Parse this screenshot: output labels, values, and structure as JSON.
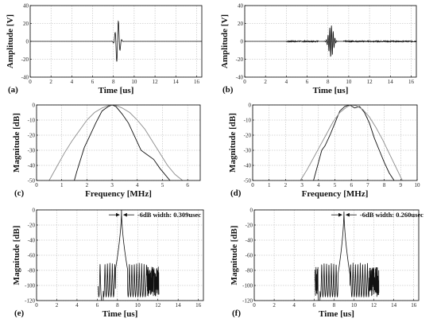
{
  "colors": {
    "trace": "#111111",
    "model": "#8c8c8c",
    "grid": "#b0b0b0",
    "frame": "#000000"
  },
  "chart_data": [
    {
      "panel": "(a)",
      "type": "line",
      "kind": "pulse",
      "xlabel": "Time [us]",
      "ylabel": "Amplitude [V]",
      "xlim": [
        0,
        16.5
      ],
      "ylim": [
        -40,
        40
      ],
      "xticks": [
        0,
        2,
        4,
        6,
        8,
        10,
        12,
        14,
        16
      ],
      "yticks": [
        -40,
        -20,
        0,
        20,
        40
      ],
      "grid": true,
      "pulse": {
        "center": 8.4,
        "peak": 25,
        "width": 0.25,
        "freq": 3.0
      }
    },
    {
      "panel": "(b)",
      "type": "line",
      "kind": "pulse",
      "xlabel": "Time [us]",
      "ylabel": "Amplitude [V]",
      "xlim": [
        0,
        16.5
      ],
      "ylim": [
        -40,
        40
      ],
      "xticks": [
        0,
        2,
        4,
        6,
        8,
        10,
        12,
        14,
        16
      ],
      "yticks": [
        -40,
        -20,
        0,
        20,
        40
      ],
      "grid": true,
      "pulse": {
        "center": 8.3,
        "peak": 18,
        "width": 0.3,
        "freq": 6.0
      }
    },
    {
      "panel": "(c)",
      "type": "line",
      "kind": "spectrum",
      "xlabel": "Frequency [MHz]",
      "ylabel": "Magnitude [dB]",
      "xlim": [
        0,
        6.5
      ],
      "ylim": [
        -50,
        0
      ],
      "xticks": [
        0,
        1,
        2,
        3,
        4,
        5,
        6
      ],
      "yticks": [
        -50,
        -40,
        -30,
        -20,
        -10,
        0
      ],
      "grid": true,
      "series": [
        {
          "role": "measured",
          "x": [
            1.5,
            1.6,
            1.75,
            1.9,
            2.1,
            2.35,
            2.6,
            2.85,
            3.0,
            3.15,
            3.4,
            3.65,
            3.9,
            4.15,
            4.4,
            4.65,
            4.9,
            5.1,
            5.3
          ],
          "y": [
            -50,
            -44,
            -36,
            -28,
            -21,
            -12,
            -4,
            -1,
            0,
            -1,
            -6,
            -12,
            -21,
            -30,
            -33,
            -36,
            -42,
            -46,
            -50
          ]
        },
        {
          "role": "model",
          "x": [
            0.5,
            0.8,
            1.1,
            1.4,
            1.7,
            2.0,
            2.3,
            2.6,
            2.9,
            3.1,
            3.4,
            3.7,
            4.0,
            4.3,
            4.6,
            4.9,
            5.2,
            5.5,
            5.8
          ],
          "y": [
            -50,
            -41,
            -32,
            -24,
            -17,
            -10,
            -5,
            -2,
            -0.2,
            0,
            -2,
            -5,
            -10,
            -16,
            -24,
            -32,
            -40,
            -46,
            -50
          ]
        }
      ]
    },
    {
      "panel": "(d)",
      "type": "line",
      "kind": "spectrum",
      "xlabel": "Frequency [MHz]",
      "ylabel": "Magnitude [dB]",
      "xlim": [
        0,
        10
      ],
      "ylim": [
        -50,
        0
      ],
      "xticks": [
        0,
        1,
        2,
        3,
        4,
        5,
        6,
        7,
        8,
        9,
        10
      ],
      "yticks": [
        -50,
        -40,
        -30,
        -20,
        -10,
        0
      ],
      "grid": true,
      "series": [
        {
          "role": "measured",
          "x": [
            3.7,
            3.85,
            4.0,
            4.2,
            4.4,
            4.7,
            5.0,
            5.3,
            5.6,
            5.9,
            6.2,
            6.5,
            6.8,
            7.1,
            7.4,
            7.7,
            8.0,
            8.3,
            8.6
          ],
          "y": [
            -50,
            -44,
            -38,
            -30,
            -27,
            -20,
            -12,
            -4,
            -1,
            0,
            -2,
            -1,
            -5,
            -12,
            -22,
            -30,
            -38,
            -45,
            -50
          ]
        },
        {
          "role": "model",
          "x": [
            2.9,
            3.3,
            3.7,
            4.1,
            4.5,
            4.9,
            5.3,
            5.7,
            6.0,
            6.3,
            6.7,
            7.1,
            7.5,
            7.9,
            8.3,
            8.7,
            9.1
          ],
          "y": [
            -50,
            -43,
            -35,
            -27,
            -19,
            -11,
            -5,
            -1.5,
            0,
            -0.5,
            -3,
            -8,
            -15,
            -23,
            -32,
            -41,
            -50
          ]
        }
      ]
    },
    {
      "panel": "(e)",
      "type": "line",
      "kind": "envelope",
      "xlabel": "Time [us]",
      "ylabel": "Magnitude [dB]",
      "xlim": [
        0,
        16.5
      ],
      "ylim": [
        -120,
        0
      ],
      "xticks": [
        0,
        2,
        4,
        6,
        8,
        10,
        12,
        14,
        16
      ],
      "yticks": [
        -120,
        -100,
        -80,
        -60,
        -40,
        -20,
        0
      ],
      "grid": true,
      "envelope": {
        "center": 8.4,
        "start": 6.1,
        "end": 12.1,
        "sharp": 0.32
      },
      "annotation": "-6dB width: 0.309usec"
    },
    {
      "panel": "(f)",
      "type": "line",
      "kind": "envelope",
      "xlabel": "Time [us]",
      "ylabel": "Magnitude [dB]",
      "xlim": [
        0,
        16.5
      ],
      "ylim": [
        -120,
        0
      ],
      "xticks": [
        0,
        2,
        4,
        6,
        8,
        10,
        12,
        14,
        16
      ],
      "yticks": [
        -120,
        -100,
        -80,
        -60,
        -40,
        -20,
        0
      ],
      "grid": true,
      "envelope": {
        "center": 9.0,
        "start": 6.1,
        "end": 12.5,
        "sharp": 0.28
      },
      "annotation": "-6dB width: 0.260usec"
    }
  ]
}
